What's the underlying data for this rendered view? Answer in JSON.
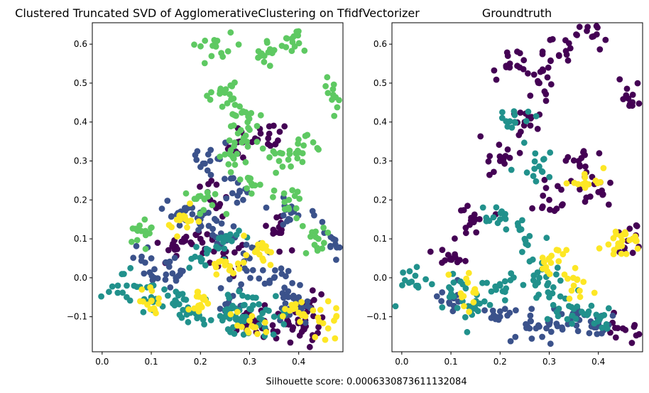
{
  "figure": {
    "footer": "Silhouette score: 0.0006330873611132084"
  },
  "palette": {
    "purple": "#440154",
    "blue": "#3b528b",
    "teal": "#21918c",
    "green": "#5ec962",
    "yellow": "#fde725"
  },
  "chart_data": [
    {
      "type": "scatter",
      "title": "Clustered Truncated SVD of AgglomerativeClustering on TfidfVectorizer",
      "xlim": [
        -0.02,
        0.49
      ],
      "ylim": [
        -0.19,
        0.655
      ],
      "xticks": [
        "0.0",
        "0.1",
        "0.2",
        "0.3",
        "0.4"
      ],
      "yticks": [
        "−0.1",
        "0.0",
        "0.1",
        "0.2",
        "0.3",
        "0.4",
        "0.5",
        "0.6"
      ],
      "grid": false,
      "series": [
        {
          "color": "#440154",
          "points": [
            [
              0.2,
              0.1
            ],
            [
              0.25,
              0.05
            ],
            [
              0.3,
              -0.1
            ],
            [
              0.36,
              0.13
            ],
            [
              0.38,
              -0.12
            ],
            [
              0.41,
              -0.13
            ],
            [
              0.31,
              -0.12
            ],
            [
              0.28,
              0.35
            ],
            [
              0.34,
              0.37
            ],
            [
              0.42,
              -0.08
            ],
            [
              0.15,
              0.08
            ],
            [
              0.22,
              0.2
            ]
          ]
        },
        {
          "color": "#3b528b",
          "points": [
            [
              0.2,
              0.15
            ],
            [
              0.1,
              0.05
            ],
            [
              0.15,
              0.0
            ],
            [
              0.25,
              0.1
            ],
            [
              0.3,
              0.05
            ],
            [
              0.26,
              -0.05
            ],
            [
              0.35,
              0.0
            ],
            [
              0.38,
              -0.08
            ],
            [
              0.22,
              0.3
            ],
            [
              0.16,
              0.17
            ],
            [
              0.39,
              0.17
            ],
            [
              0.4,
              -0.05
            ],
            [
              0.47,
              0.1
            ],
            [
              0.28,
              0.22
            ]
          ]
        },
        {
          "color": "#21918c",
          "points": [
            [
              0.05,
              -0.02
            ],
            [
              0.1,
              -0.05
            ],
            [
              0.18,
              -0.09
            ],
            [
              0.25,
              -0.1
            ],
            [
              0.3,
              -0.08
            ],
            [
              0.15,
              -0.06
            ],
            [
              0.28,
              -0.12
            ],
            [
              0.35,
              -0.1
            ],
            [
              0.2,
              0.05
            ],
            [
              0.25,
              0.1
            ]
          ]
        },
        {
          "color": "#5ec962",
          "points": [
            [
              0.26,
              0.32
            ],
            [
              0.3,
              0.38
            ],
            [
              0.24,
              0.48
            ],
            [
              0.23,
              0.6
            ],
            [
              0.33,
              0.57
            ],
            [
              0.39,
              0.62
            ],
            [
              0.47,
              0.47
            ],
            [
              0.2,
              0.21
            ],
            [
              0.38,
              0.2
            ],
            [
              0.3,
              0.25
            ],
            [
              0.28,
              0.44
            ],
            [
              0.36,
              0.3
            ],
            [
              0.44,
              0.1
            ],
            [
              0.41,
              0.34
            ],
            [
              0.08,
              0.12
            ]
          ]
        },
        {
          "color": "#fde725",
          "points": [
            [
              0.1,
              -0.06
            ],
            [
              0.2,
              -0.07
            ],
            [
              0.3,
              -0.11
            ],
            [
              0.4,
              -0.09
            ],
            [
              0.46,
              -0.13
            ],
            [
              0.17,
              0.15
            ],
            [
              0.32,
              0.06
            ],
            [
              0.26,
              0.03
            ]
          ]
        }
      ]
    },
    {
      "type": "scatter",
      "title": "Groundtruth",
      "xlim": [
        -0.02,
        0.49
      ],
      "ylim": [
        -0.19,
        0.655
      ],
      "xticks": [
        "0.0",
        "0.1",
        "0.2",
        "0.3",
        "0.4"
      ],
      "yticks": [
        "−0.1",
        "0.0",
        "0.1",
        "0.2",
        "0.3",
        "0.4",
        "0.5",
        "0.6"
      ],
      "grid": false,
      "series": [
        {
          "color": "#440154",
          "points": [
            [
              0.2,
              0.3
            ],
            [
              0.25,
              0.4
            ],
            [
              0.28,
              0.5
            ],
            [
              0.32,
              0.57
            ],
            [
              0.39,
              0.62
            ],
            [
              0.47,
              0.47
            ],
            [
              0.3,
              0.2
            ],
            [
              0.4,
              0.22
            ],
            [
              0.15,
              0.15
            ],
            [
              0.47,
              0.1
            ],
            [
              0.1,
              0.05
            ],
            [
              0.45,
              -0.13
            ],
            [
              0.36,
              0.3
            ],
            [
              0.22,
              0.55
            ]
          ]
        },
        {
          "color": "#3b528b",
          "points": [
            [
              0.1,
              -0.05
            ],
            [
              0.2,
              -0.1
            ],
            [
              0.3,
              -0.12
            ],
            [
              0.4,
              -0.12
            ],
            [
              0.26,
              -0.13
            ],
            [
              0.35,
              -0.1
            ]
          ]
        },
        {
          "color": "#21918c",
          "points": [
            [
              0.02,
              -0.01
            ],
            [
              0.1,
              -0.03
            ],
            [
              0.2,
              -0.02
            ],
            [
              0.3,
              -0.05
            ],
            [
              0.25,
              0.1
            ],
            [
              0.27,
              0.28
            ],
            [
              0.23,
              0.4
            ],
            [
              0.2,
              0.15
            ],
            [
              0.15,
              -0.08
            ],
            [
              0.35,
              -0.08
            ],
            [
              0.4,
              -0.11
            ],
            [
              0.28,
              0.0
            ]
          ]
        },
        {
          "color": "#fde725",
          "points": [
            [
              0.3,
              0.05
            ],
            [
              0.35,
              -0.02
            ],
            [
              0.38,
              0.24
            ],
            [
              0.44,
              0.08
            ],
            [
              0.47,
              0.1
            ],
            [
              0.12,
              -0.04
            ]
          ]
        }
      ]
    }
  ]
}
